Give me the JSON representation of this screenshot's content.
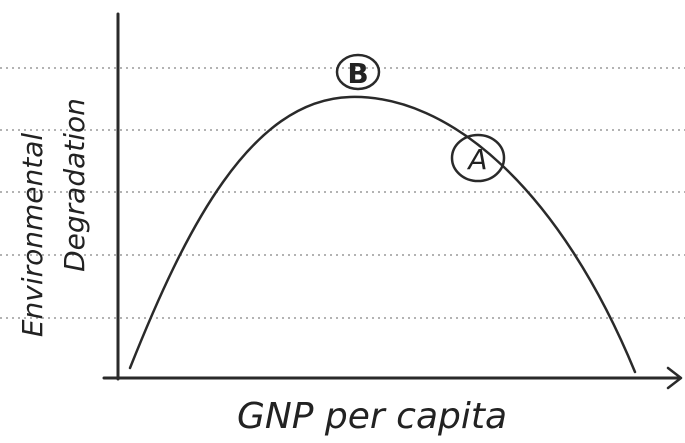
{
  "y_axis_label": [
    "Environmental",
    "Degradation"
  ],
  "x_axis_label": "GNP per capita",
  "points": [
    {
      "label": "B"
    },
    {
      "label": "A"
    }
  ]
}
